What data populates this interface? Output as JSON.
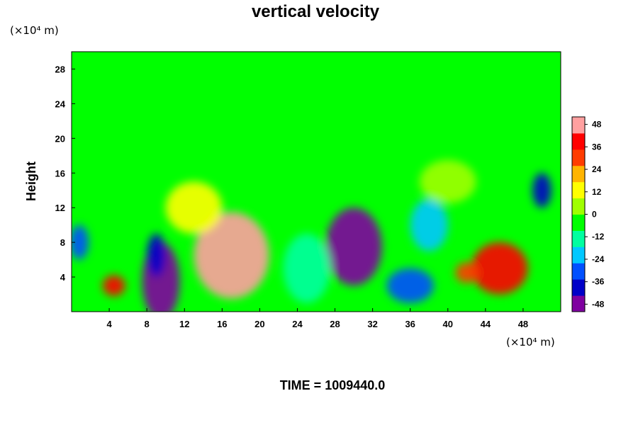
{
  "chart_data": {
    "type": "heatmap",
    "title": "vertical velocity",
    "ylabel": "Height",
    "x_unit": "(×10⁴ m)",
    "y_unit": "(×10⁴ m)",
    "xlim": [
      0,
      52
    ],
    "ylim": [
      0,
      30
    ],
    "x_ticks": [
      4,
      8,
      12,
      16,
      20,
      24,
      28,
      32,
      36,
      40,
      44,
      48
    ],
    "y_ticks": [
      4,
      8,
      12,
      16,
      20,
      24,
      28
    ],
    "colorbar": {
      "range": [
        -52,
        52
      ],
      "ticks": [
        48,
        36,
        24,
        12,
        0,
        -12,
        -24,
        -36,
        -48
      ],
      "colors": [
        "#7f00a0",
        "#0000c8",
        "#0050ff",
        "#00c8ff",
        "#00ffa0",
        "#00ff00",
        "#a0ff00",
        "#ffff00",
        "#ffb400",
        "#ff3c00",
        "#ff0000",
        "#ffa0a0"
      ]
    },
    "features": [
      {
        "x": 9.5,
        "y": 3.5,
        "rx": 2.0,
        "ry": 4.5,
        "value": -50
      },
      {
        "x": 9.0,
        "y": 6.5,
        "rx": 1.0,
        "ry": 2.5,
        "value": -40
      },
      {
        "x": 17.0,
        "y": 6.5,
        "rx": 4.0,
        "ry": 5.0,
        "value": 48
      },
      {
        "x": 4.5,
        "y": 3.0,
        "rx": 1.2,
        "ry": 1.2,
        "value": 38
      },
      {
        "x": 0.8,
        "y": 8.0,
        "rx": 1.0,
        "ry": 2.0,
        "value": -32
      },
      {
        "x": 30.0,
        "y": 7.5,
        "rx": 3.0,
        "ry": 4.5,
        "value": -46
      },
      {
        "x": 36.0,
        "y": 3.0,
        "rx": 2.5,
        "ry": 2.0,
        "value": -34
      },
      {
        "x": 45.5,
        "y": 5.0,
        "rx": 3.0,
        "ry": 3.0,
        "value": 36
      },
      {
        "x": 42.0,
        "y": 4.5,
        "rx": 1.2,
        "ry": 1.2,
        "value": 28
      },
      {
        "x": 50.0,
        "y": 14.0,
        "rx": 1.0,
        "ry": 2.0,
        "value": -36
      },
      {
        "x": 25.0,
        "y": 5.0,
        "rx": 2.5,
        "ry": 4.0,
        "value": -14
      },
      {
        "x": 38.0,
        "y": 10.0,
        "rx": 2.0,
        "ry": 3.0,
        "value": -18
      },
      {
        "x": 13.0,
        "y": 12.0,
        "rx": 3.0,
        "ry": 3.0,
        "value": 10
      },
      {
        "x": 40.0,
        "y": 15.0,
        "rx": 3.0,
        "ry": 2.5,
        "value": 8
      }
    ]
  },
  "footer": {
    "time_label": "TIME = 1009440.0"
  }
}
